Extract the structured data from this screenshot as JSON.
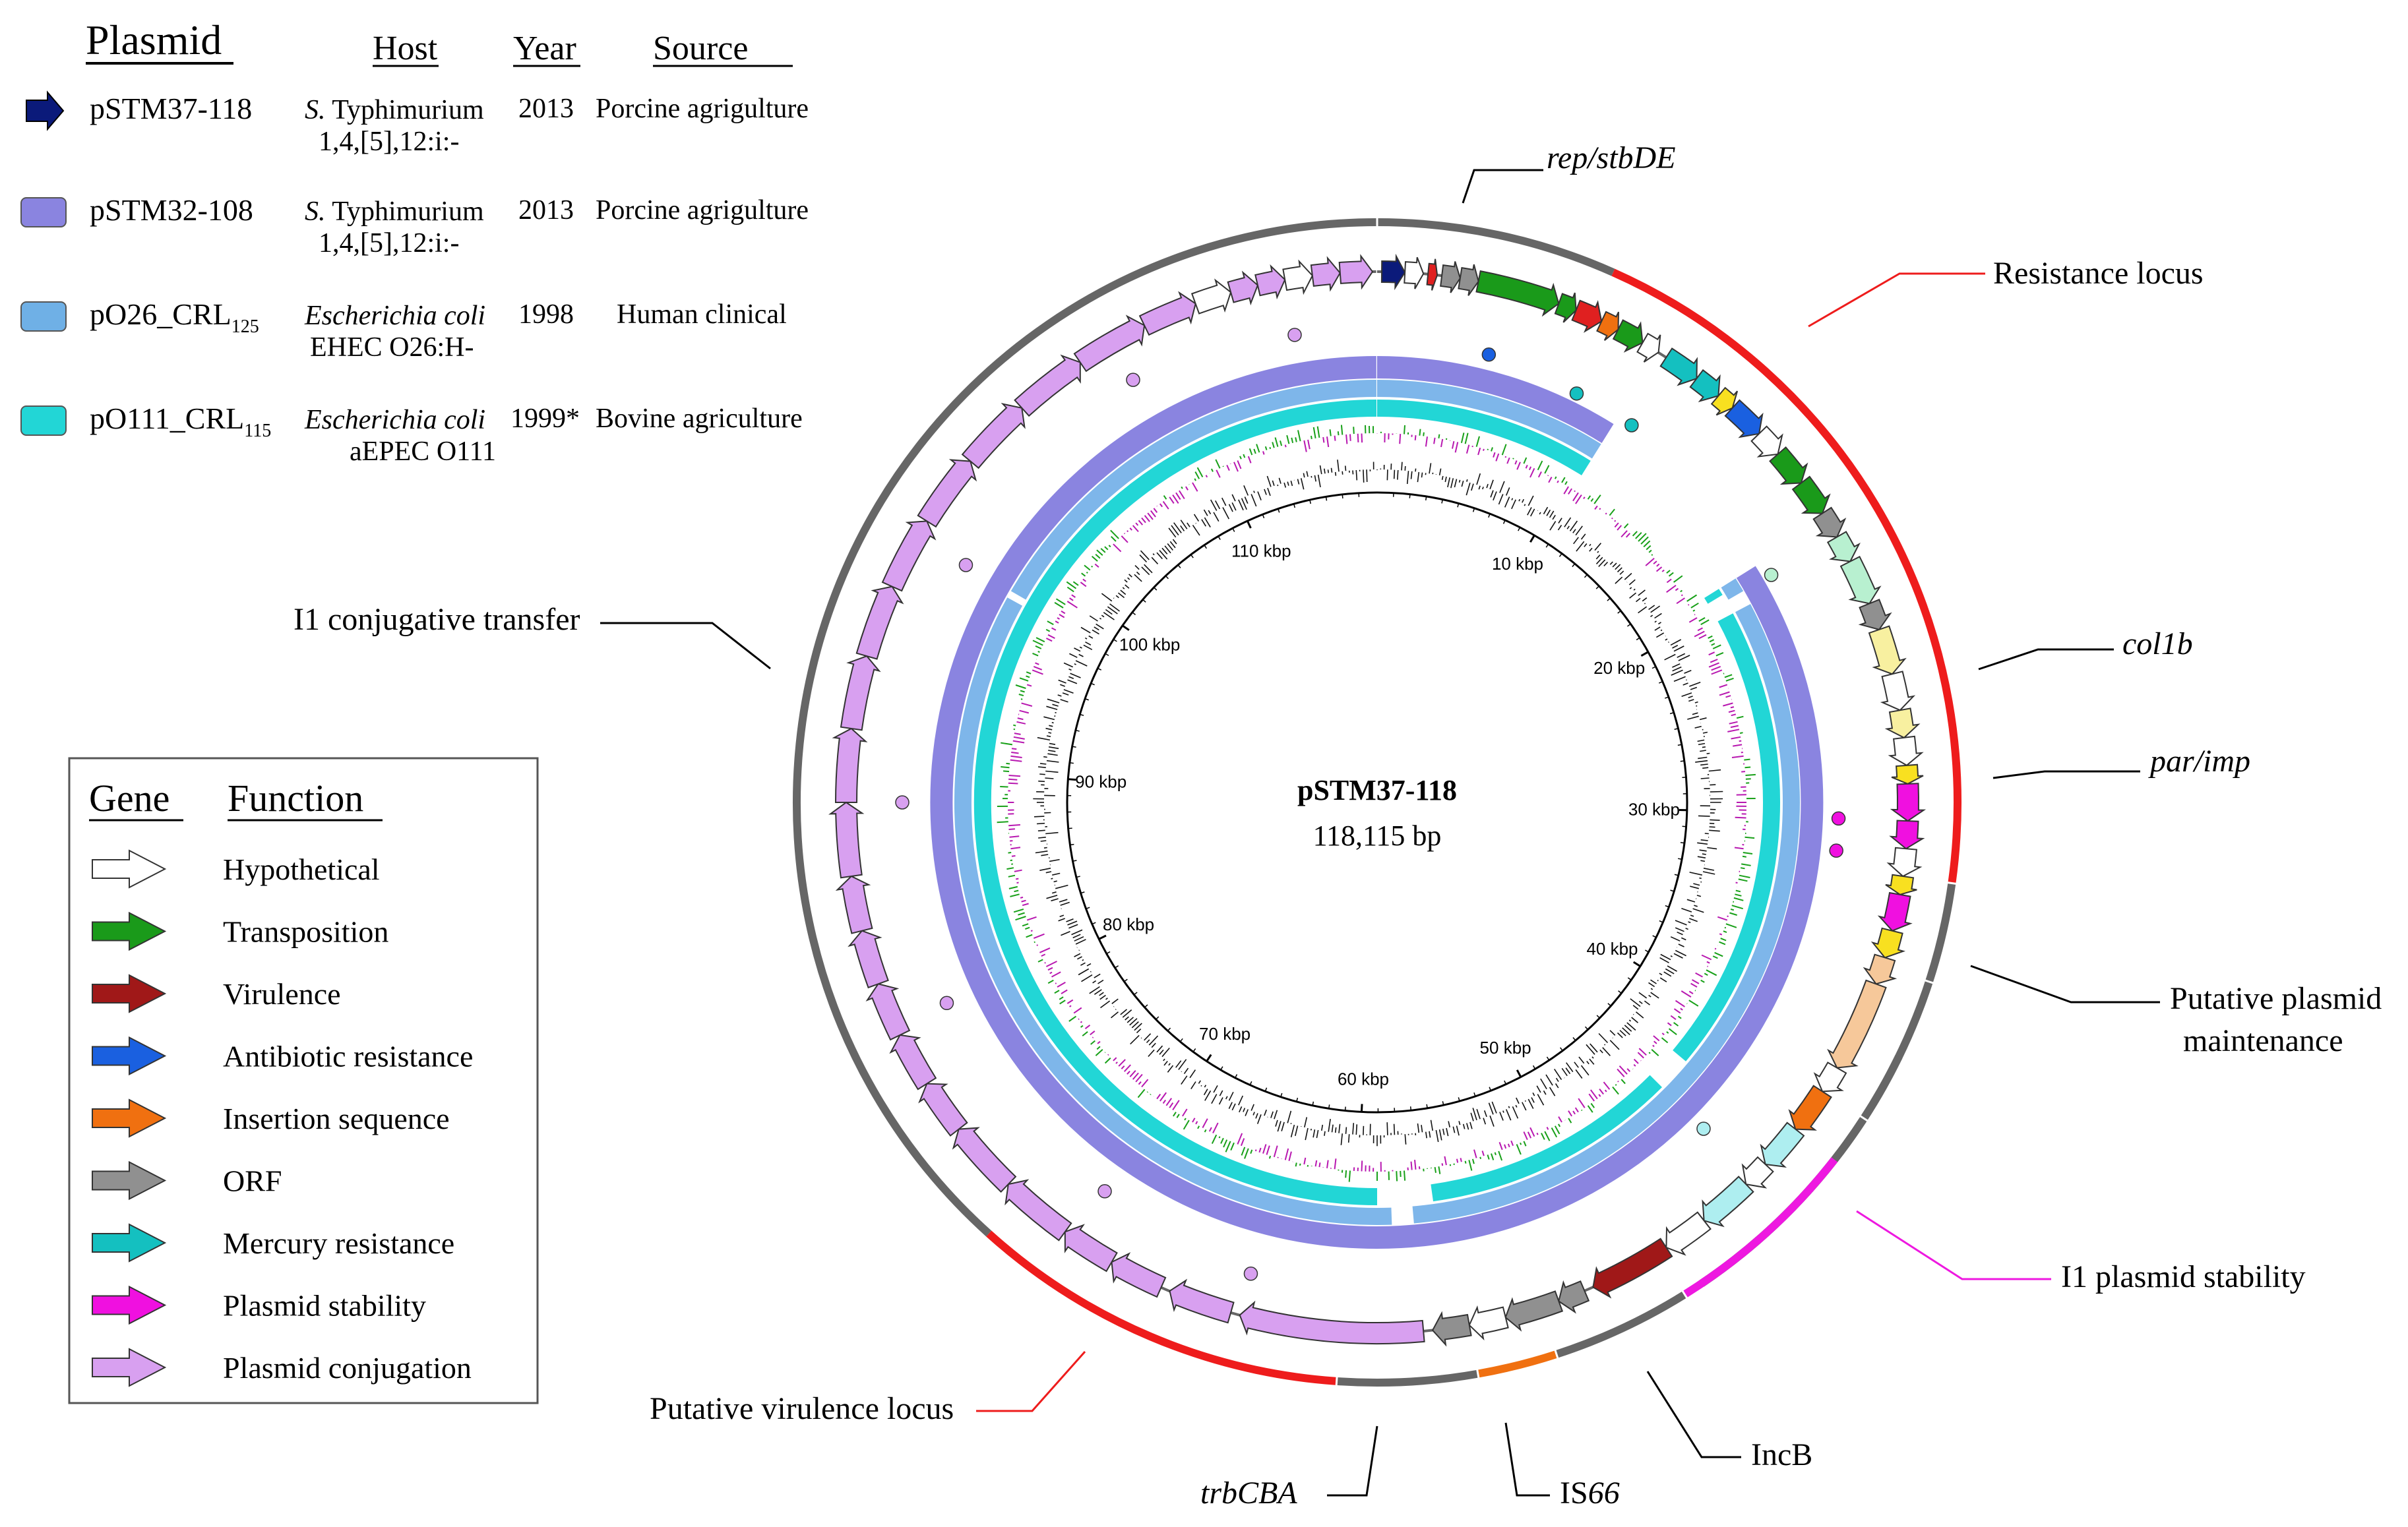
{
  "plasmid_table": {
    "headers": {
      "plasmid": "Plasmid",
      "host": "Host",
      "year": "Year",
      "source": "Source"
    },
    "rows": [
      {
        "name": "pSTM37-118",
        "name_sub": "",
        "host_italic": "S.",
        "host_rest": " Typhimurium",
        "host_line2": "1,4,[5],12:i:-",
        "year": "2013",
        "source": "Porcine agrigulture",
        "color": "#0b1a7a"
      },
      {
        "name": "pSTM32-108",
        "name_sub": "",
        "host_italic": "S.",
        "host_rest": " Typhimurium",
        "host_line2": "1,4,[5],12:i:-",
        "year": "2013",
        "source": "Porcine agrigulture",
        "color": "#8a84e0"
      },
      {
        "name": "pO26_CRL",
        "name_sub": "125",
        "host_italic": "Escherichia coli",
        "host_rest": "",
        "host_line2": "EHEC O26:H-",
        "year": "1998",
        "source": "Human clinical",
        "color": "#6fb0e6"
      },
      {
        "name": "pO111_CRL",
        "name_sub": "115",
        "host_italic": "Escherichia coli",
        "host_rest": "",
        "host_line2": "aEPEC O111",
        "year": "1999*",
        "source": "Bovine agriculture",
        "color": "#22d6d6"
      }
    ]
  },
  "gene_legend": {
    "header_gene": "Gene",
    "header_function": "Function",
    "items": [
      {
        "label": "Hypothetical",
        "color": "#ffffff"
      },
      {
        "label": "Transposition",
        "color": "#1a9a1a"
      },
      {
        "label": "Virulence",
        "color": "#a01818"
      },
      {
        "label": "Antibiotic resistance",
        "color": "#1a60e0"
      },
      {
        "label": "Insertion sequence",
        "color": "#f07010"
      },
      {
        "label": "ORF",
        "color": "#909090"
      },
      {
        "label": "Mercury resistance",
        "color": "#14c0c0"
      },
      {
        "label": "Plasmid stability",
        "color": "#f010e0"
      },
      {
        "label": "Plasmid conjugation",
        "color": "#d8a0f0"
      }
    ]
  },
  "center": {
    "name": "pSTM37-118",
    "size": "118,115 bp"
  },
  "kbp_ticks": [
    "10 kbp",
    "20 kbp",
    "30 kbp",
    "40 kbp",
    "50 kbp",
    "60 kbp",
    "70 kbp",
    "80 kbp",
    "90 kbp",
    "100 kbp",
    "110 kbp"
  ],
  "annotations": {
    "rep": "rep/stbDE",
    "resistance": "Resistance locus",
    "col1b": "col1b",
    "parimp": "par/imp",
    "maint1": "Putative plasmid",
    "maint2": "maintenance",
    "i1stab": "I1 plasmid stability",
    "incb": "IncB",
    "is66_pre": "IS",
    "is66_it": "66",
    "trbcba": "trbCBA",
    "virulence": "Putative virulence locus",
    "conj": "I1 conjugative transfer"
  },
  "colors": {
    "ring_red": "#ee1c1c",
    "ring_gray": "#666666",
    "ring_magenta": "#ee18e0",
    "ring_orange": "#f07010",
    "ring_stm32": "#8a84e0",
    "ring_o26": "#7eb6ea",
    "ring_o111": "#22d6d6",
    "gc_pos": "#18a018",
    "gc_neg": "#b818b0",
    "gc_content": "#111111"
  }
}
